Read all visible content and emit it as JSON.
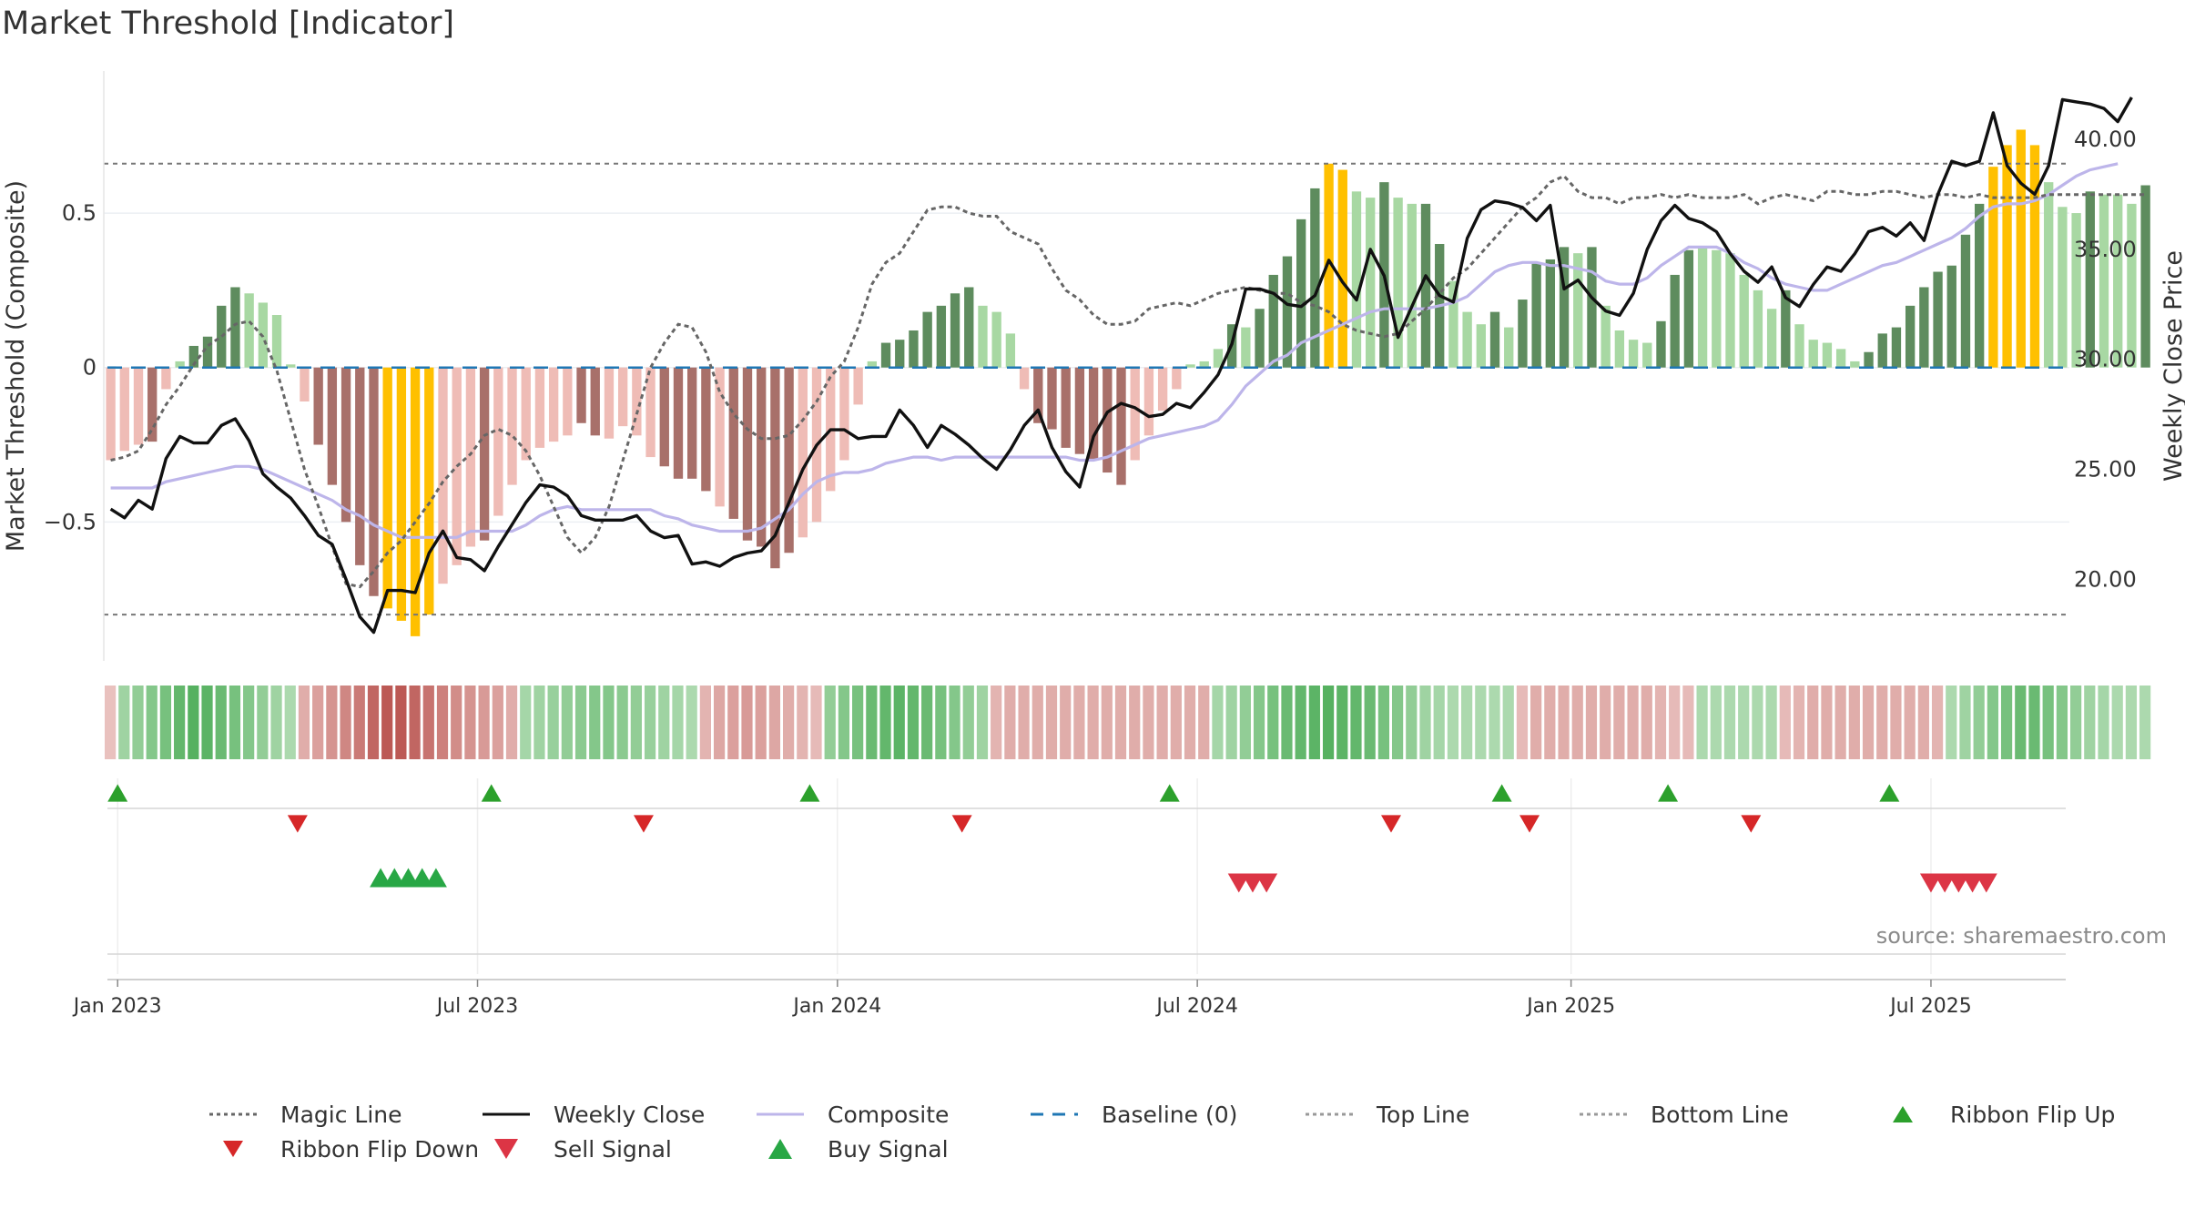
{
  "title": "Market Threshold [Indicator]",
  "source": "source: sharemaestro.com",
  "colors": {
    "pos_dark": "#5e8c5e",
    "pos_light": "#a8d8a3",
    "neg_dark": "#a8706a",
    "neg_light": "#efbcb6",
    "extreme": "#ffc000",
    "magic": "#666666",
    "close": "#111111",
    "composite": "#bdb5ea",
    "baseline": "#1f77b4",
    "threshold": "#777777",
    "up": "#2ca02c",
    "down": "#d62728",
    "sell": "#dc3545",
    "buy": "#28a745"
  },
  "chart_data": {
    "type": "bar",
    "title": "Market Threshold [Indicator]",
    "xaxis": {
      "range": [
        "2022-12-26",
        "2025-09-15"
      ],
      "ticks": [
        {
          "date": "2023-01-02",
          "label": "Jan 2023"
        },
        {
          "date": "2023-07-03",
          "label": "Jul 2023"
        },
        {
          "date": "2024-01-01",
          "label": "Jan 2024"
        },
        {
          "date": "2024-07-01",
          "label": "Jul 2024"
        },
        {
          "date": "2025-01-06",
          "label": "Jan 2025"
        },
        {
          "date": "2025-07-07",
          "label": "Jul 2025"
        }
      ]
    },
    "y_left": {
      "label": "Market Threshold (Composite)",
      "range": [
        -0.95,
        0.96
      ],
      "ticks": [
        {
          "v": 0.5,
          "label": "0.5"
        },
        {
          "v": 0,
          "label": "0"
        },
        {
          "v": -0.5,
          "label": "−0.5"
        }
      ]
    },
    "y_right": {
      "label": "Weekly Close Price",
      "range": [
        16.3,
        43.1
      ],
      "ticks": [
        {
          "v": 40,
          "label": "40.00"
        },
        {
          "v": 35,
          "label": "35.00"
        },
        {
          "v": 30,
          "label": "30.00"
        },
        {
          "v": 25,
          "label": "25.00"
        },
        {
          "v": 20,
          "label": "20.00"
        }
      ]
    },
    "top_line": 0.66,
    "bottom_line": -0.8,
    "bars": [
      -0.3,
      -0.27,
      -0.25,
      -0.24,
      -0.07,
      0.02,
      0.07,
      0.1,
      0.2,
      0.26,
      0.24,
      0.21,
      0.17,
      0.01,
      -0.11,
      -0.25,
      -0.38,
      -0.5,
      -0.64,
      -0.74,
      -0.78,
      -0.82,
      -0.87,
      -0.8,
      -0.7,
      -0.64,
      -0.58,
      -0.56,
      -0.48,
      -0.38,
      -0.3,
      -0.26,
      -0.24,
      -0.22,
      -0.18,
      -0.22,
      -0.23,
      -0.19,
      -0.22,
      -0.29,
      -0.32,
      -0.36,
      -0.36,
      -0.4,
      -0.45,
      -0.49,
      -0.56,
      -0.58,
      -0.65,
      -0.6,
      -0.55,
      -0.5,
      -0.4,
      -0.3,
      -0.12,
      0.02,
      0.08,
      0.09,
      0.12,
      0.18,
      0.2,
      0.24,
      0.26,
      0.2,
      0.18,
      0.11,
      -0.07,
      -0.18,
      -0.2,
      -0.26,
      -0.28,
      -0.3,
      -0.34,
      -0.38,
      -0.3,
      -0.22,
      -0.14,
      -0.07,
      0.01,
      0.02,
      0.06,
      0.14,
      0.13,
      0.19,
      0.3,
      0.36,
      0.48,
      0.58,
      0.66,
      0.64,
      0.57,
      0.55,
      0.6,
      0.55,
      0.53,
      0.53,
      0.4,
      0.28,
      0.18,
      0.14,
      0.18,
      0.13,
      0.22,
      0.34,
      0.35,
      0.39,
      0.37,
      0.39,
      0.2,
      0.12,
      0.09,
      0.08,
      0.15,
      0.3,
      0.38,
      0.39,
      0.38,
      0.37,
      0.3,
      0.25,
      0.19,
      0.25,
      0.14,
      0.09,
      0.08,
      0.06,
      0.02,
      0.05,
      0.11,
      0.13,
      0.2,
      0.26,
      0.31,
      0.33,
      0.43,
      0.53,
      0.65,
      0.72,
      0.77,
      0.72,
      0.6,
      0.52,
      0.5,
      0.57,
      0.56,
      0.56,
      0.53,
      0.59
    ],
    "bar_class": [
      "nl",
      "nl",
      "nl",
      "nd",
      "nl",
      "pl",
      "pd",
      "pd",
      "pd",
      "pd",
      "pl",
      "pl",
      "pl",
      "pl",
      "nl",
      "nd",
      "nd",
      "nd",
      "nd",
      "nd",
      "ex",
      "ex",
      "ex",
      "ex",
      "nl",
      "nl",
      "nl",
      "nd",
      "nl",
      "nl",
      "nl",
      "nl",
      "nl",
      "nl",
      "nd",
      "nd",
      "nl",
      "nl",
      "nl",
      "nl",
      "nd",
      "nd",
      "nd",
      "nd",
      "nl",
      "nd",
      "nd",
      "nd",
      "nd",
      "nd",
      "nl",
      "nl",
      "nl",
      "nl",
      "nl",
      "pl",
      "pd",
      "pd",
      "pd",
      "pd",
      "pd",
      "pd",
      "pd",
      "pl",
      "pl",
      "pl",
      "nl",
      "nd",
      "nd",
      "nd",
      "nd",
      "nd",
      "nd",
      "nd",
      "nl",
      "nl",
      "nl",
      "nl",
      "pl",
      "pl",
      "pl",
      "pd",
      "pl",
      "pd",
      "pd",
      "pd",
      "pd",
      "pd",
      "ex",
      "ex",
      "pl",
      "pl",
      "pd",
      "pl",
      "pl",
      "pd",
      "pd",
      "pl",
      "pl",
      "pl",
      "pd",
      "pl",
      "pd",
      "pd",
      "pd",
      "pd",
      "pl",
      "pd",
      "pl",
      "pl",
      "pl",
      "pl",
      "pd",
      "pd",
      "pd",
      "pl",
      "pl",
      "pl",
      "pl",
      "pl",
      "pl",
      "pd",
      "pl",
      "pl",
      "pl",
      "pl",
      "pl",
      "pd",
      "pd",
      "pd",
      "pd",
      "pd",
      "pd",
      "pd",
      "pd",
      "pd",
      "ex",
      "ex",
      "ex",
      "ex",
      "pl",
      "pl",
      "pl",
      "pd",
      "pl",
      "pl",
      "pl",
      "pd"
    ],
    "magic_line": [
      -0.3,
      -0.29,
      -0.27,
      -0.2,
      -0.12,
      -0.06,
      0.01,
      0.07,
      0.1,
      0.14,
      0.15,
      0.1,
      -0.01,
      -0.17,
      -0.33,
      -0.45,
      -0.58,
      -0.7,
      -0.71,
      -0.66,
      -0.6,
      -0.56,
      -0.5,
      -0.44,
      -0.37,
      -0.32,
      -0.28,
      -0.22,
      -0.2,
      -0.22,
      -0.27,
      -0.35,
      -0.45,
      -0.55,
      -0.6,
      -0.55,
      -0.45,
      -0.3,
      -0.15,
      0.0,
      0.08,
      0.14,
      0.13,
      0.05,
      -0.08,
      -0.15,
      -0.2,
      -0.23,
      -0.23,
      -0.22,
      -0.17,
      -0.11,
      -0.03,
      0.02,
      0.13,
      0.27,
      0.34,
      0.37,
      0.44,
      0.51,
      0.52,
      0.52,
      0.5,
      0.49,
      0.49,
      0.44,
      0.42,
      0.4,
      0.32,
      0.25,
      0.22,
      0.17,
      0.14,
      0.14,
      0.15,
      0.19,
      0.2,
      0.21,
      0.2,
      0.22,
      0.24,
      0.25,
      0.26,
      0.25,
      0.24,
      0.24,
      0.21,
      0.2,
      0.18,
      0.14,
      0.12,
      0.11,
      0.1,
      0.11,
      0.15,
      0.19,
      0.24,
      0.29,
      0.32,
      0.37,
      0.42,
      0.47,
      0.52,
      0.55,
      0.6,
      0.62,
      0.57,
      0.55,
      0.55,
      0.53,
      0.55,
      0.55,
      0.56,
      0.55,
      0.56,
      0.55,
      0.55,
      0.55,
      0.56,
      0.53,
      0.55,
      0.56,
      0.55,
      0.54,
      0.57,
      0.57,
      0.56,
      0.56,
      0.57,
      0.57,
      0.56,
      0.55,
      0.56,
      0.56,
      0.55,
      0.56,
      0.55,
      0.55,
      0.55,
      0.55,
      0.56,
      0.56,
      0.56,
      0.56,
      0.56,
      0.56,
      0.56,
      0.56
    ],
    "magic_line_note": "",
    "weekly_close": [
      23.2,
      22.8,
      23.6,
      23.2,
      25.5,
      26.5,
      26.2,
      26.2,
      27.0,
      27.3,
      26.3,
      24.8,
      24.2,
      23.7,
      22.9,
      22.0,
      21.6,
      20.0,
      18.3,
      17.6,
      19.5,
      19.5,
      19.4,
      21.2,
      22.2,
      21.0,
      20.9,
      20.4,
      21.5,
      22.5,
      23.5,
      24.3,
      24.2,
      23.8,
      22.9,
      22.7,
      22.7,
      22.7,
      22.9,
      22.2,
      21.9,
      22.0,
      20.7,
      20.8,
      20.6,
      21.0,
      21.2,
      21.3,
      22.0,
      23.5,
      25.0,
      26.1,
      26.8,
      26.8,
      26.4,
      26.5,
      26.5,
      27.7,
      27.0,
      26.0,
      27.0,
      26.6,
      26.1,
      25.5,
      25.0,
      25.9,
      27.0,
      27.7,
      26.0,
      24.9,
      24.2,
      26.5,
      27.6,
      28.0,
      27.8,
      27.4,
      27.5,
      28.0,
      27.8,
      28.5,
      29.3,
      30.7,
      33.2,
      33.2,
      33.0,
      32.5,
      32.4,
      32.9,
      34.5,
      33.5,
      32.7,
      35.0,
      33.8,
      31.0,
      32.4,
      33.8,
      32.9,
      32.6,
      35.5,
      36.8,
      37.2,
      37.1,
      36.9,
      36.3,
      37.0,
      33.2,
      33.6,
      32.8,
      32.2,
      32.0,
      33.0,
      35.0,
      36.3,
      37.0,
      36.4,
      36.2,
      35.8,
      34.8,
      34.0,
      33.5,
      34.2,
      32.8,
      32.4,
      33.4,
      34.2,
      34.0,
      34.8,
      35.8,
      36.0,
      35.6,
      36.2,
      35.4,
      37.5,
      39.0,
      38.8,
      39.0,
      41.2,
      38.8,
      38.0,
      37.5,
      38.8,
      41.8,
      41.7,
      41.6,
      41.4,
      40.8,
      41.9
    ],
    "composite": [
      -0.39,
      -0.39,
      -0.39,
      -0.39,
      -0.37,
      -0.36,
      -0.35,
      -0.34,
      -0.33,
      -0.32,
      -0.32,
      -0.33,
      -0.35,
      -0.37,
      -0.39,
      -0.41,
      -0.43,
      -0.46,
      -0.48,
      -0.51,
      -0.53,
      -0.55,
      -0.55,
      -0.55,
      -0.55,
      -0.55,
      -0.53,
      -0.53,
      -0.53,
      -0.53,
      -0.51,
      -0.48,
      -0.46,
      -0.45,
      -0.46,
      -0.46,
      -0.46,
      -0.46,
      -0.46,
      -0.46,
      -0.48,
      -0.49,
      -0.51,
      -0.52,
      -0.53,
      -0.53,
      -0.53,
      -0.52,
      -0.49,
      -0.46,
      -0.41,
      -0.37,
      -0.35,
      -0.34,
      -0.34,
      -0.33,
      -0.31,
      -0.3,
      -0.29,
      -0.29,
      -0.3,
      -0.29,
      -0.29,
      -0.29,
      -0.29,
      -0.29,
      -0.29,
      -0.29,
      -0.29,
      -0.29,
      -0.3,
      -0.3,
      -0.29,
      -0.27,
      -0.25,
      -0.23,
      -0.22,
      -0.21,
      -0.2,
      -0.19,
      -0.17,
      -0.12,
      -0.06,
      -0.02,
      0.02,
      0.04,
      0.08,
      0.1,
      0.12,
      0.14,
      0.16,
      0.18,
      0.19,
      0.19,
      0.19,
      0.19,
      0.2,
      0.21,
      0.23,
      0.27,
      0.31,
      0.33,
      0.34,
      0.34,
      0.33,
      0.33,
      0.32,
      0.31,
      0.28,
      0.27,
      0.27,
      0.29,
      0.33,
      0.36,
      0.39,
      0.39,
      0.39,
      0.37,
      0.34,
      0.32,
      0.29,
      0.27,
      0.26,
      0.25,
      0.25,
      0.27,
      0.29,
      0.31,
      0.33,
      0.34,
      0.36,
      0.38,
      0.4,
      0.42,
      0.45,
      0.49,
      0.52,
      0.53,
      0.53,
      0.54,
      0.56,
      0.59,
      0.62,
      0.64,
      0.65,
      0.66
    ],
    "ribbon": [
      -0.15,
      0.4,
      0.5,
      0.6,
      0.7,
      0.85,
      0.95,
      0.9,
      0.8,
      0.7,
      0.6,
      0.5,
      0.4,
      0.3,
      -0.3,
      -0.4,
      -0.5,
      -0.6,
      -0.7,
      -0.85,
      -0.95,
      -0.95,
      -0.85,
      -0.75,
      -0.65,
      -0.55,
      -0.5,
      -0.45,
      -0.4,
      -0.3,
      0.35,
      0.4,
      0.45,
      0.5,
      0.55,
      0.6,
      0.6,
      0.55,
      0.5,
      0.45,
      0.4,
      0.35,
      0.3,
      -0.25,
      -0.35,
      -0.4,
      -0.45,
      -0.4,
      -0.35,
      -0.3,
      -0.25,
      -0.2,
      0.5,
      0.6,
      0.7,
      0.8,
      0.85,
      0.9,
      0.85,
      0.8,
      0.7,
      0.6,
      0.5,
      0.4,
      -0.25,
      -0.3,
      -0.3,
      -0.3,
      -0.3,
      -0.3,
      -0.3,
      -0.3,
      -0.3,
      -0.3,
      -0.3,
      -0.3,
      -0.3,
      -0.3,
      -0.3,
      -0.3,
      0.35,
      0.4,
      0.5,
      0.6,
      0.7,
      0.8,
      0.85,
      0.9,
      0.95,
      0.9,
      0.85,
      0.8,
      0.7,
      0.6,
      0.5,
      0.4,
      0.35,
      0.3,
      0.3,
      0.3,
      0.3,
      0.3,
      -0.2,
      -0.3,
      -0.3,
      -0.3,
      -0.3,
      -0.3,
      -0.3,
      -0.3,
      -0.3,
      -0.3,
      -0.25,
      -0.2,
      -0.2,
      0.3,
      0.3,
      0.3,
      0.3,
      0.3,
      0.3,
      -0.2,
      -0.25,
      -0.3,
      -0.3,
      -0.3,
      -0.3,
      -0.3,
      -0.3,
      -0.3,
      -0.3,
      -0.3,
      -0.25,
      0.3,
      0.4,
      0.5,
      0.6,
      0.7,
      0.8,
      0.8,
      0.7,
      0.6,
      0.5,
      0.4,
      0.35,
      0.3,
      0.3,
      0.3
    ],
    "ribbon_flip_up": [
      "2023-01-02",
      "2023-07-10",
      "2023-12-18",
      "2024-06-17",
      "2024-12-02",
      "2025-02-24",
      "2025-06-16"
    ],
    "ribbon_flip_down": [
      "2023-04-03",
      "2023-09-25",
      "2024-03-04",
      "2024-10-07",
      "2024-12-16",
      "2025-04-07"
    ],
    "sell_signal": [
      "2024-07-22",
      "2024-07-29",
      "2024-08-05",
      "2025-07-07",
      "2025-07-14",
      "2025-07-21",
      "2025-07-28",
      "2025-08-04"
    ],
    "buy_signal": [
      "2023-05-15",
      "2023-05-22",
      "2023-05-29",
      "2023-06-05",
      "2023-06-12"
    ]
  },
  "legend": [
    {
      "label": "Magic Line",
      "type": "dotted",
      "color": "#666666"
    },
    {
      "label": "Weekly Close",
      "type": "solid",
      "color": "#111111"
    },
    {
      "label": "Composite",
      "type": "solid",
      "color": "#bdb5ea"
    },
    {
      "label": "Baseline (0)",
      "type": "dashed",
      "color": "#1f77b4"
    },
    {
      "label": "Top Line",
      "type": "dotted",
      "color": "#999999"
    },
    {
      "label": "Bottom Line",
      "type": "dotted",
      "color": "#999999"
    },
    {
      "label": "Ribbon Flip Up",
      "type": "tri-up",
      "color": "#2ca02c"
    },
    {
      "label": "Ribbon Flip Down",
      "type": "tri-down",
      "color": "#d62728"
    },
    {
      "label": "Sell Signal",
      "type": "tri-down-lg",
      "color": "#dc3545"
    },
    {
      "label": "Buy Signal",
      "type": "tri-up-lg",
      "color": "#28a745"
    }
  ]
}
